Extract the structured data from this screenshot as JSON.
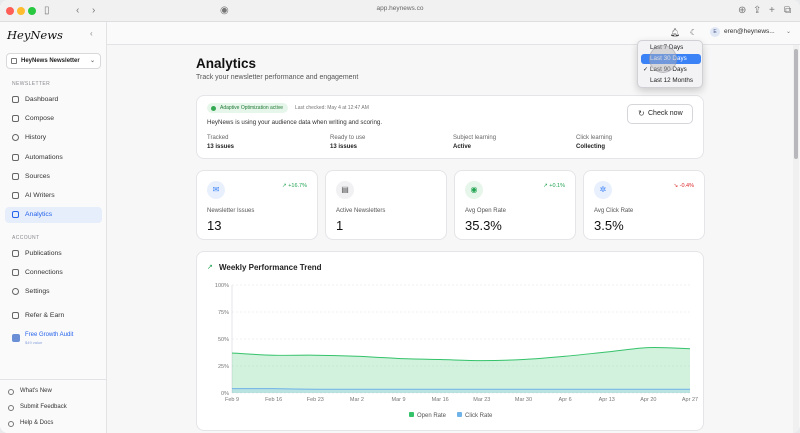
{
  "browser": {
    "url": "app.heynews.co"
  },
  "sidebar": {
    "logo": "HeyNews",
    "newsletter_select": "HeyNews Newsletter",
    "section_newsletter": "NEWSLETTER",
    "items": [
      {
        "label": "Dashboard",
        "icon": "dashboard-icon"
      },
      {
        "label": "Compose",
        "icon": "compose-icon"
      },
      {
        "label": "History",
        "icon": "history-icon"
      },
      {
        "label": "Automations",
        "icon": "automations-icon"
      },
      {
        "label": "Sources",
        "icon": "sources-icon"
      },
      {
        "label": "AI Writers",
        "icon": "ai-writers-icon"
      },
      {
        "label": "Analytics",
        "icon": "analytics-icon",
        "active": true
      }
    ],
    "section_account": "ACCOUNT",
    "account_items": [
      {
        "label": "Publications",
        "icon": "publications-icon"
      },
      {
        "label": "Connections",
        "icon": "connections-icon"
      },
      {
        "label": "Settings",
        "icon": "settings-icon"
      },
      {
        "label": "Refer & Earn",
        "icon": "gift-icon"
      }
    ],
    "audit": {
      "title": "Free Growth Audit",
      "subtitle": "$49 value"
    },
    "footer_items": [
      {
        "label": "What's New"
      },
      {
        "label": "Submit Feedback"
      },
      {
        "label": "Help & Docs"
      }
    ]
  },
  "topbar": {
    "user_email": "eren@heynews...",
    "avatar_letter": "E"
  },
  "page": {
    "title": "Analytics",
    "subtitle": "Track your newsletter performance and engagement"
  },
  "status": {
    "badge": "Adaptive Optimization active",
    "last_checked": "Last checked: May 4 at 12:47 AM",
    "description": "HeyNews is using your audience data when writing and scoring.",
    "check_button": "Check now",
    "stats": [
      {
        "label": "Tracked",
        "value": "13 issues"
      },
      {
        "label": "Ready to use",
        "value": "13 issues"
      },
      {
        "label": "Subject learning",
        "value": "Active"
      },
      {
        "label": "Click learning",
        "value": "Collecting"
      }
    ]
  },
  "metrics": [
    {
      "label": "Newsletter Issues",
      "value": "13",
      "trend": "+16.7%",
      "trend_dir": "up",
      "icon": "mail-icon",
      "icon_color": "#3b82f6",
      "icon_bg": "#e8f0fe"
    },
    {
      "label": "Active Newsletters",
      "value": "1",
      "trend": "",
      "trend_dir": "none",
      "icon": "newspaper-icon",
      "icon_color": "#555555",
      "icon_bg": "#f1f1f3"
    },
    {
      "label": "Avg Open Rate",
      "value": "35.3%",
      "trend": "+0.1%",
      "trend_dir": "up",
      "icon": "eye-icon",
      "icon_color": "#22a352",
      "icon_bg": "#e7f6ea"
    },
    {
      "label": "Avg Click Rate",
      "value": "3.5%",
      "trend": "-0.4%",
      "trend_dir": "down",
      "icon": "pointer-icon",
      "icon_color": "#3b82f6",
      "icon_bg": "#e8f0fe"
    }
  ],
  "chart": {
    "title": "Weekly Performance Trend"
  },
  "chart_data": {
    "type": "area",
    "title": "Weekly Performance Trend",
    "x": [
      "Feb 9",
      "Feb 16",
      "Feb 23",
      "Mar 2",
      "Mar 9",
      "Mar 16",
      "Mar 23",
      "Mar 30",
      "Apr 6",
      "Apr 13",
      "Apr 20",
      "Apr 27"
    ],
    "ylim": [
      0,
      100
    ],
    "yticks": [
      "0%",
      "25%",
      "50%",
      "75%",
      "100%"
    ],
    "grid": true,
    "legend": "bottom",
    "series": [
      {
        "name": "Open Rate",
        "color": "#34c26a",
        "values": [
          37,
          35,
          35,
          34,
          32,
          31,
          30,
          31,
          34,
          38,
          42,
          41
        ]
      },
      {
        "name": "Click Rate",
        "color": "#6fb3e8",
        "values": [
          4,
          4,
          3.5,
          3.5,
          3.5,
          3.5,
          3.5,
          3.5,
          3.5,
          3.5,
          3.5,
          3.5
        ]
      }
    ]
  },
  "dropdown": {
    "options": [
      "Last 7 Days",
      "Last 30 Days",
      "Last 90 Days",
      "Last 12 Months"
    ],
    "selected": "Last 90 Days",
    "highlighted": "Last 30 Days"
  },
  "colors": {
    "accent": "#2563eb",
    "success": "#22a352",
    "danger": "#dc2626"
  }
}
